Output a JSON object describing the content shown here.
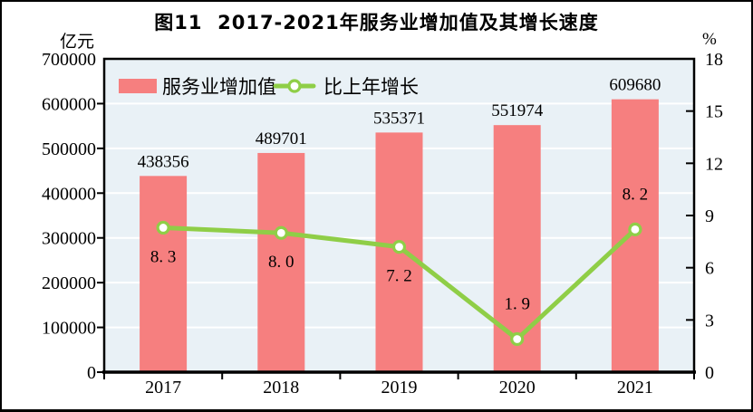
{
  "figure": {
    "title": "图11  2017-2021年服务业增加值及其增长速度",
    "left_axis_unit": "亿元",
    "right_axis_unit": "%"
  },
  "chart_data": {
    "type": "bar+line combo",
    "title": "图11  2017-2021年服务业增加值及其增长速度",
    "categories": [
      "2017",
      "2018",
      "2019",
      "2020",
      "2021"
    ],
    "series": [
      {
        "name": "服务业增加值",
        "type": "bar",
        "axis": "left",
        "values": [
          438356,
          489701,
          535371,
          551974,
          609680
        ],
        "labels": [
          "438356",
          "489701",
          "535371",
          "551974",
          "609680"
        ],
        "color": "#F67F7F"
      },
      {
        "name": "比上年增长",
        "type": "line",
        "axis": "right",
        "values": [
          8.3,
          8.0,
          7.2,
          1.9,
          8.2
        ],
        "labels": [
          "8. 3",
          "8. 0",
          "7. 2",
          "1. 9",
          "8. 2"
        ],
        "label_side": [
          "below",
          "below",
          "below",
          "above",
          "above"
        ],
        "color": "#8FCE47",
        "marker_fill": "#FFFFFF"
      }
    ],
    "left_axis": {
      "unit": "亿元",
      "min": 0,
      "max": 700000,
      "step": 100000,
      "ticks": [
        "0",
        "100000",
        "200000",
        "300000",
        "400000",
        "500000",
        "600000",
        "700000"
      ]
    },
    "right_axis": {
      "unit": "%",
      "min": 0,
      "max": 18,
      "step": 3,
      "ticks": [
        "0",
        "3",
        "6",
        "9",
        "12",
        "15",
        "18"
      ]
    },
    "legend_position": "top-left-inside",
    "grid": "horizontal-white",
    "colors": {
      "plot_background": "#E9F1F6",
      "gridline": "#FFFFFF",
      "axis": "#000000",
      "text": "#000000"
    }
  }
}
